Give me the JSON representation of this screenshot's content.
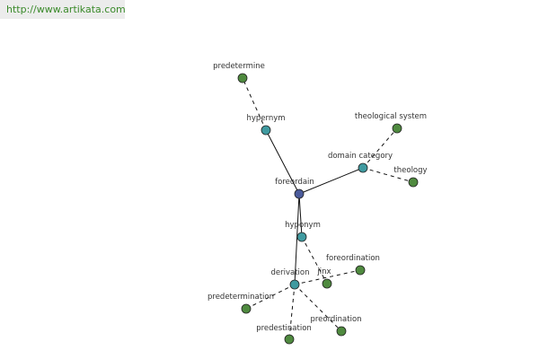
{
  "header": {
    "url": "http://www.artikata.com"
  },
  "nodes": [
    {
      "label": "foreordain"
    },
    {
      "label": "hypernym"
    },
    {
      "label": "predetermine"
    },
    {
      "label": "domain category"
    },
    {
      "label": "theological system"
    },
    {
      "label": "theology"
    },
    {
      "label": "hyponym"
    },
    {
      "label": "jinx"
    },
    {
      "label": "derivation"
    },
    {
      "label": "foreordination"
    },
    {
      "label": "predetermination"
    },
    {
      "label": "predestination"
    },
    {
      "label": "preordination"
    }
  ]
}
